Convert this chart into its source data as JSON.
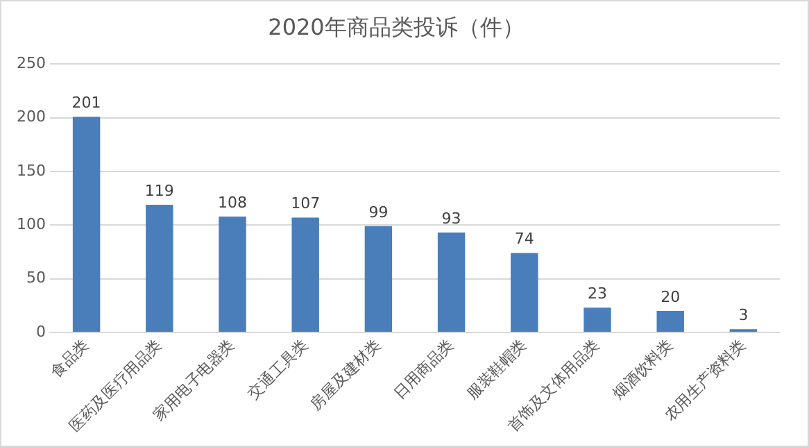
{
  "chart_data": {
    "type": "bar",
    "title": "2020年商品类投诉（件）",
    "categories": [
      "食品类",
      "医药及医疗用品类",
      "家用电子电器类",
      "交通工具类",
      "房屋及建材类",
      "日用商品类",
      "服装鞋帽类",
      "首饰及文体用品类",
      "烟酒饮料类",
      "农用生产资料类"
    ],
    "values": [
      201,
      119,
      108,
      107,
      99,
      93,
      74,
      23,
      20,
      3
    ],
    "color": "#4a7ebb",
    "ylim": [
      0,
      250
    ],
    "yticks": [
      0,
      50,
      100,
      150,
      200,
      250
    ],
    "grid": "y",
    "data_labels": true,
    "legend": false
  }
}
